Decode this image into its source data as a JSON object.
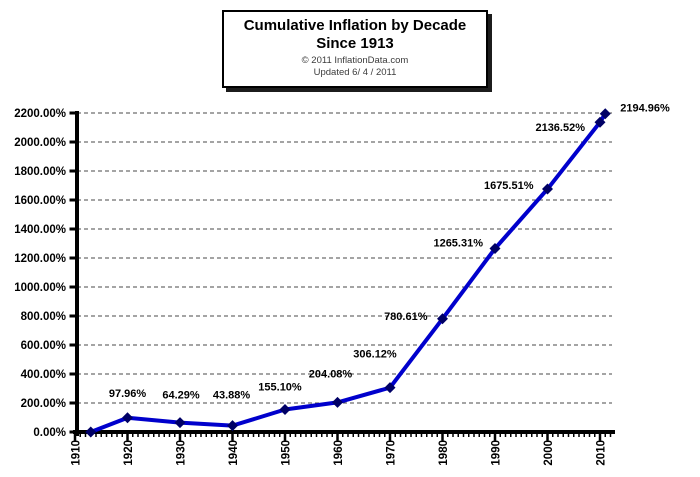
{
  "title_box": {
    "line1": "Cumulative Inflation by Decade",
    "line2": "Since 1913",
    "copyright": "© 2011  InflationData.com",
    "updated": "Updated   6/ 4 / 2011"
  },
  "colors": {
    "background": "#FFFFFF",
    "line": "#0000CC",
    "marker": "#000066",
    "grid": "#4a4a4a",
    "axis": "#000000",
    "label_text": "#000000",
    "small_text": "#3c3c3c"
  },
  "chart_data": {
    "type": "line",
    "title": "Cumulative Inflation by Decade Since 1913",
    "xlabel": "",
    "ylabel": "",
    "legend": "none",
    "grid": "horizontal-dashed",
    "ylim": [
      0,
      2200
    ],
    "y_tick_step": 200,
    "y_ticks": [
      "0.00%",
      "200.00%",
      "400.00%",
      "600.00%",
      "800.00%",
      "1000.00%",
      "1200.00%",
      "1400.00%",
      "1600.00%",
      "1800.00%",
      "2000.00%",
      "2200.00%"
    ],
    "x_range": [
      1910,
      2012
    ],
    "x_ticks": [
      1910,
      1920,
      1930,
      1940,
      1950,
      1960,
      1970,
      1980,
      1990,
      2000,
      2010
    ],
    "series": [
      {
        "name": "Cumulative Inflation",
        "points": [
          {
            "year": 1913,
            "value": 0.0,
            "label": ""
          },
          {
            "year": 1920,
            "value": 97.96,
            "label": "97.96%",
            "anchor": "middle",
            "dx": 0,
            "dy": -21
          },
          {
            "year": 1930,
            "value": 64.29,
            "label": "64.29%",
            "anchor": "middle",
            "dx": 1,
            "dy": -24
          },
          {
            "year": 1940,
            "value": 43.88,
            "label": "43.88%",
            "anchor": "middle",
            "dx": -1,
            "dy": -27
          },
          {
            "year": 1950,
            "value": 155.1,
            "label": "155.10%",
            "anchor": "middle",
            "dx": -5,
            "dy": -19
          },
          {
            "year": 1960,
            "value": 204.08,
            "label": "204.08%",
            "anchor": "middle",
            "dx": -7,
            "dy": -25
          },
          {
            "year": 1970,
            "value": 306.12,
            "label": "306.12%",
            "anchor": "middle",
            "dx": -15,
            "dy": -30
          },
          {
            "year": 1980,
            "value": 780.61,
            "label": "780.61%",
            "anchor": "end",
            "dx": -15,
            "dy": 1
          },
          {
            "year": 1990,
            "value": 1265.31,
            "label": "1265.31%",
            "anchor": "end",
            "dx": -12,
            "dy": -2
          },
          {
            "year": 2000,
            "value": 1675.51,
            "label": "1675.51%",
            "anchor": "end",
            "dx": -14,
            "dy": 0
          },
          {
            "year": 2010,
            "value": 2136.52,
            "label": "2136.52%",
            "anchor": "end",
            "dx": -15,
            "dy": 9
          },
          {
            "year": 2011,
            "value": 2194.96,
            "label": "2194.96%",
            "anchor": "start",
            "dx": 15,
            "dy": -2
          }
        ]
      }
    ]
  }
}
